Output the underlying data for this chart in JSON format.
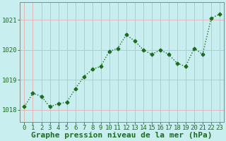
{
  "x": [
    0,
    1,
    2,
    3,
    4,
    5,
    6,
    7,
    8,
    9,
    10,
    11,
    12,
    13,
    14,
    15,
    16,
    17,
    18,
    19,
    20,
    21,
    22,
    23
  ],
  "y": [
    1018.1,
    1018.55,
    1018.45,
    1018.1,
    1018.2,
    1018.25,
    1018.7,
    1019.1,
    1019.35,
    1019.45,
    1019.95,
    1020.05,
    1020.5,
    1020.3,
    1020.0,
    1019.85,
    1020.0,
    1019.85,
    1019.55,
    1019.45,
    1020.05,
    1019.85,
    1021.05,
    1021.2
  ],
  "line_color": "#1a6e1a",
  "marker": "D",
  "markersize": 2.5,
  "background_color": "#c8eef0",
  "grid_color": "#e0b8b8",
  "xlabel": "Graphe pression niveau de la mer (hPa)",
  "xlabel_fontsize": 8,
  "xlabel_color": "#1a6e1a",
  "ylabel_ticks": [
    1018,
    1019,
    1020,
    1021
  ],
  "ylim": [
    1017.6,
    1021.6
  ],
  "xlim": [
    -0.5,
    23.5
  ],
  "tick_fontsize": 6.5,
  "tick_color": "#1a6e1a",
  "linewidth": 1.0,
  "grid_linewidth": 0.7,
  "figsize": [
    3.2,
    2.0
  ],
  "dpi": 100
}
